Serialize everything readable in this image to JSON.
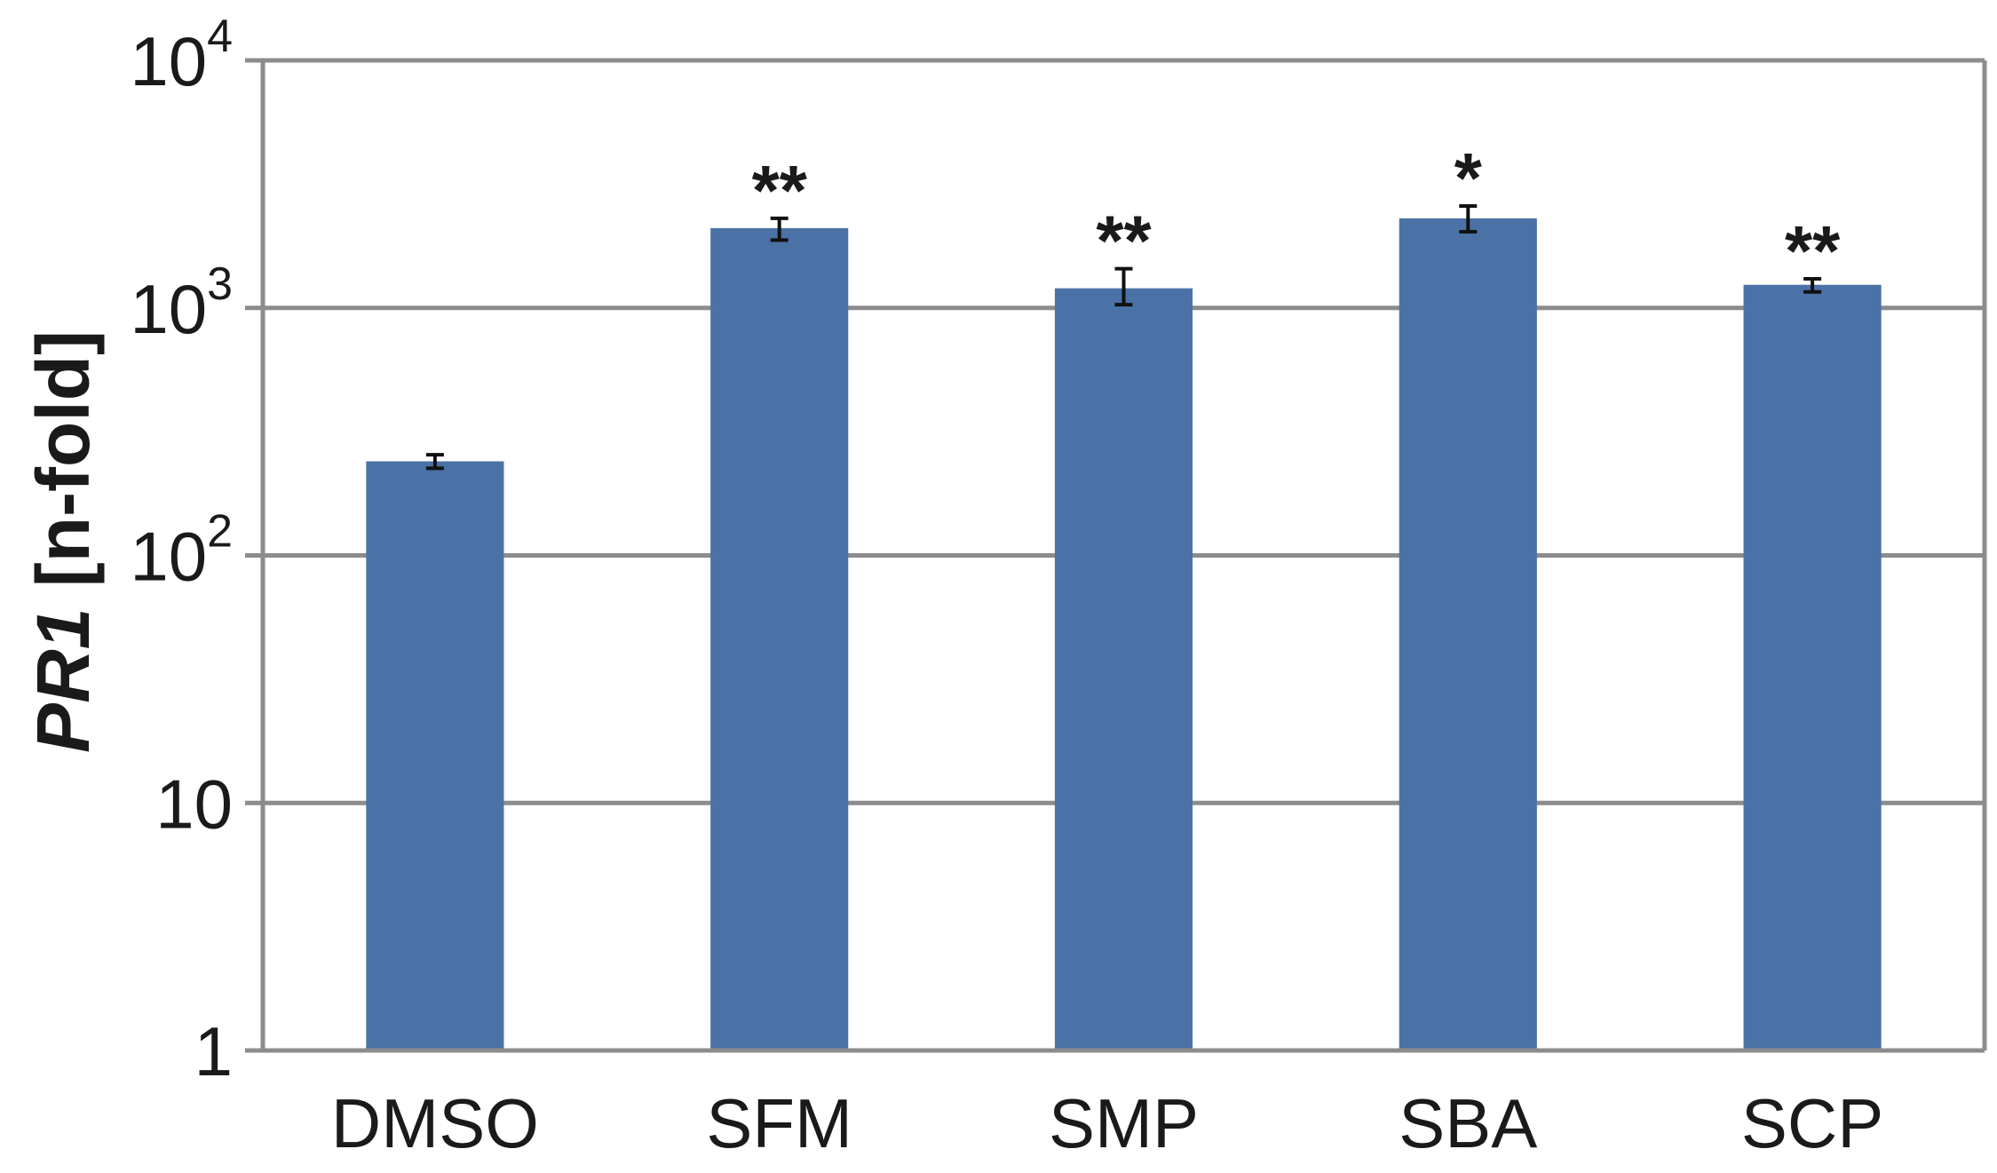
{
  "chart_data": {
    "type": "bar",
    "ylabel": {
      "gene": "PR1",
      "unit": " [n-fold]"
    },
    "yscale": "log",
    "ylim": [
      1,
      10000
    ],
    "yticks": [
      {
        "value": 1,
        "base": "1",
        "exp": ""
      },
      {
        "value": 10,
        "base": "10",
        "exp": ""
      },
      {
        "value": 100,
        "base": "10",
        "exp": "2"
      },
      {
        "value": 1000,
        "base": "10",
        "exp": "3"
      },
      {
        "value": 10000,
        "base": "10",
        "exp": "4"
      }
    ],
    "grid": true,
    "categories": [
      "DMSO",
      "SFM",
      "SMP",
      "SBA",
      "SCP"
    ],
    "series": [
      {
        "values": [
          240,
          2100,
          1200,
          2300,
          1240
        ],
        "err_low": [
          225,
          1880,
          1030,
          2030,
          1160
        ],
        "err_high": [
          255,
          2300,
          1440,
          2580,
          1310
        ],
        "significance": [
          "",
          "**",
          "**",
          "*",
          "**"
        ],
        "color": "#4a72a6"
      }
    ]
  }
}
